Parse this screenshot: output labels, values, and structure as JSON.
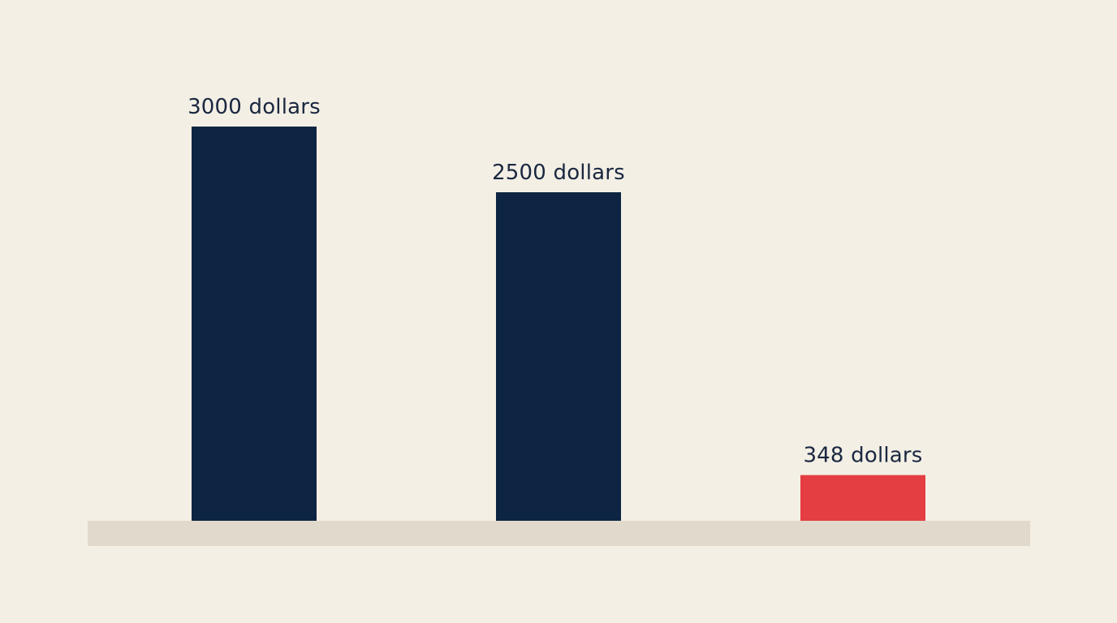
{
  "chart_data": {
    "type": "bar",
    "categories": [
      "",
      "",
      ""
    ],
    "values": [
      3000,
      2500,
      348
    ],
    "data_labels": [
      "3000 dollars",
      "2500 dollars",
      "348 dollars"
    ],
    "bar_colors": [
      "#0d2543",
      "#0d2543",
      "#e43e42"
    ],
    "baseline_color": "#e1d9cb",
    "background_color": "#f3efe5",
    "label_color": "#1a2740",
    "title": "",
    "xlabel": "",
    "ylabel": "",
    "ylim": [
      0,
      3000
    ],
    "grid": false,
    "legend": "none"
  }
}
